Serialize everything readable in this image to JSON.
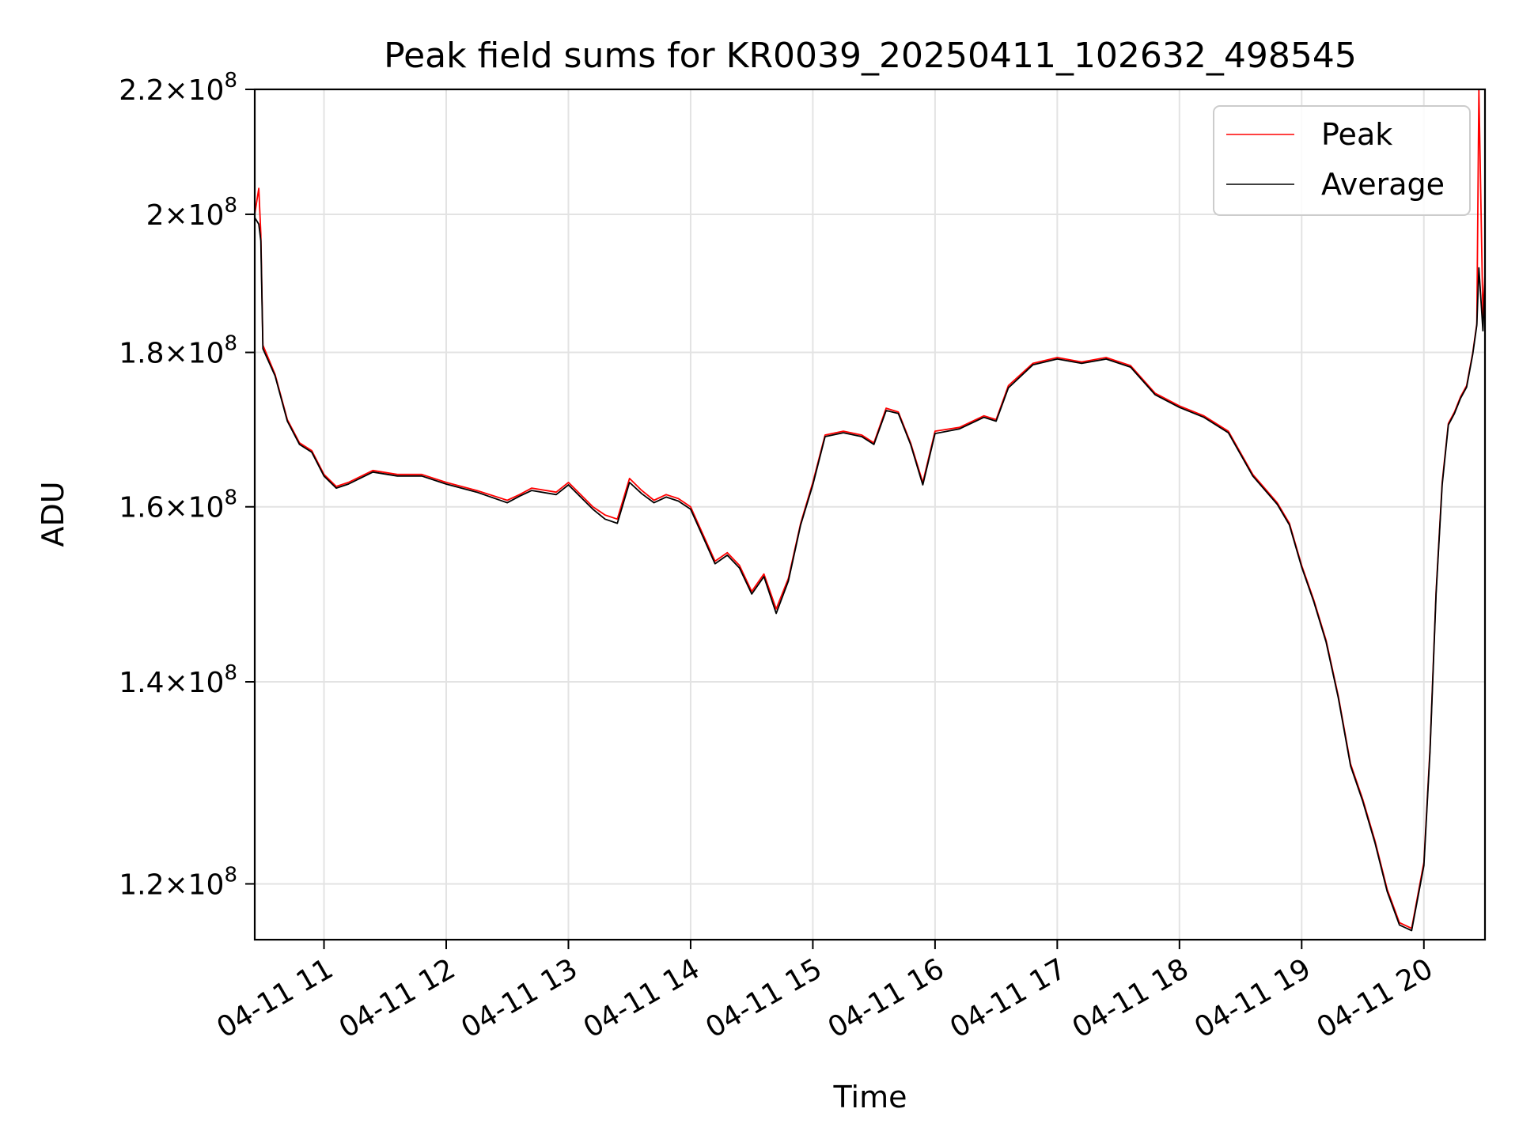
{
  "chart_data": {
    "type": "line",
    "title": "Peak field sums for KR0039_20250411_102632_498545",
    "xlabel": "Time",
    "ylabel": "ADU",
    "x_range": [
      "2025-04-11T10:26",
      "2025-04-11T20:30"
    ],
    "y_range": [
      115000000,
      220000000
    ],
    "y_scale": "log",
    "grid": true,
    "legend_position": "top-right",
    "x_tick_values": [
      "2025-04-11T11:00",
      "2025-04-11T12:00",
      "2025-04-11T13:00",
      "2025-04-11T14:00",
      "2025-04-11T15:00",
      "2025-04-11T16:00",
      "2025-04-11T17:00",
      "2025-04-11T18:00",
      "2025-04-11T19:00",
      "2025-04-11T20:00"
    ],
    "x_tick_labels": [
      "04-11 11",
      "04-11 12",
      "04-11 13",
      "04-11 14",
      "04-11 15",
      "04-11 16",
      "04-11 17",
      "04-11 18",
      "04-11 19",
      "04-11 20"
    ],
    "y_ticks": [
      {
        "value": 120000000,
        "mantissa": "1.2",
        "base": "10",
        "exponent": "8"
      },
      {
        "value": 140000000,
        "mantissa": "1.4",
        "base": "10",
        "exponent": "8"
      },
      {
        "value": 160000000,
        "mantissa": "1.6",
        "base": "10",
        "exponent": "8"
      },
      {
        "value": 180000000,
        "mantissa": "1.8",
        "base": "10",
        "exponent": "8"
      },
      {
        "value": 200000000,
        "mantissa": "2",
        "base": "10",
        "exponent": "8"
      },
      {
        "value": 220000000,
        "mantissa": "2.2",
        "base": "10",
        "exponent": "8"
      }
    ],
    "series": [
      {
        "name": "Peak",
        "color": "#ff0000",
        "x": [
          "2025-04-11T10:26",
          "2025-04-11T10:28",
          "2025-04-11T10:29",
          "2025-04-11T10:30",
          "2025-04-11T10:36",
          "2025-04-11T10:42",
          "2025-04-11T10:48",
          "2025-04-11T10:54",
          "2025-04-11T11:00",
          "2025-04-11T11:06",
          "2025-04-11T11:12",
          "2025-04-11T11:24",
          "2025-04-11T11:36",
          "2025-04-11T11:48",
          "2025-04-11T12:00",
          "2025-04-11T12:15",
          "2025-04-11T12:30",
          "2025-04-11T12:36",
          "2025-04-11T12:42",
          "2025-04-11T12:54",
          "2025-04-11T13:00",
          "2025-04-11T13:12",
          "2025-04-11T13:18",
          "2025-04-11T13:24",
          "2025-04-11T13:30",
          "2025-04-11T13:36",
          "2025-04-11T13:42",
          "2025-04-11T13:48",
          "2025-04-11T13:54",
          "2025-04-11T14:00",
          "2025-04-11T14:12",
          "2025-04-11T14:18",
          "2025-04-11T14:24",
          "2025-04-11T14:30",
          "2025-04-11T14:36",
          "2025-04-11T14:42",
          "2025-04-11T14:48",
          "2025-04-11T14:54",
          "2025-04-11T15:00",
          "2025-04-11T15:06",
          "2025-04-11T15:15",
          "2025-04-11T15:24",
          "2025-04-11T15:30",
          "2025-04-11T15:36",
          "2025-04-11T15:42",
          "2025-04-11T15:48",
          "2025-04-11T15:54",
          "2025-04-11T16:00",
          "2025-04-11T16:12",
          "2025-04-11T16:24",
          "2025-04-11T16:30",
          "2025-04-11T16:36",
          "2025-04-11T16:48",
          "2025-04-11T17:00",
          "2025-04-11T17:12",
          "2025-04-11T17:24",
          "2025-04-11T17:36",
          "2025-04-11T17:48",
          "2025-04-11T18:00",
          "2025-04-11T18:12",
          "2025-04-11T18:24",
          "2025-04-11T18:36",
          "2025-04-11T18:48",
          "2025-04-11T18:54",
          "2025-04-11T19:00",
          "2025-04-11T19:06",
          "2025-04-11T19:12",
          "2025-04-11T19:18",
          "2025-04-11T19:24",
          "2025-04-11T19:30",
          "2025-04-11T19:36",
          "2025-04-11T19:42",
          "2025-04-11T19:48",
          "2025-04-11T19:54",
          "2025-04-11T20:00",
          "2025-04-11T20:03",
          "2025-04-11T20:06",
          "2025-04-11T20:09",
          "2025-04-11T20:12",
          "2025-04-11T20:15",
          "2025-04-11T20:18",
          "2025-04-11T20:21",
          "2025-04-11T20:24",
          "2025-04-11T20:26",
          "2025-04-11T20:27",
          "2025-04-11T20:29",
          "2025-04-11T20:30"
        ],
        "y": [
          200000000,
          204000000,
          197000000,
          181000000,
          177000000,
          171000000,
          168000000,
          167000000,
          164000000,
          162500000,
          163000000,
          164500000,
          164000000,
          164000000,
          163000000,
          162000000,
          160800000,
          161500000,
          162300000,
          161800000,
          163000000,
          160000000,
          159000000,
          158500000,
          163500000,
          162000000,
          160800000,
          161500000,
          161000000,
          160000000,
          153500000,
          154500000,
          153000000,
          150000000,
          152000000,
          148000000,
          151500000,
          158000000,
          163000000,
          169000000,
          169500000,
          169000000,
          168000000,
          172500000,
          172000000,
          168000000,
          163000000,
          169500000,
          170000000,
          171500000,
          171000000,
          175500000,
          178500000,
          179300000,
          178700000,
          179300000,
          178200000,
          174500000,
          172800000,
          171500000,
          169500000,
          164000000,
          160500000,
          158000000,
          153000000,
          149000000,
          144500000,
          138500000,
          131500000,
          128000000,
          124000000,
          119500000,
          116500000,
          116000000,
          122000000,
          133000000,
          150000000,
          163000000,
          170500000,
          172000000,
          174000000,
          175500000,
          180000000,
          184000000,
          220000000,
          185000000,
          191000000
        ]
      },
      {
        "name": "Average",
        "color": "#000000",
        "x": [
          "2025-04-11T10:26",
          "2025-04-11T10:28",
          "2025-04-11T10:29",
          "2025-04-11T10:30",
          "2025-04-11T10:36",
          "2025-04-11T10:42",
          "2025-04-11T10:48",
          "2025-04-11T10:54",
          "2025-04-11T11:00",
          "2025-04-11T11:06",
          "2025-04-11T11:12",
          "2025-04-11T11:24",
          "2025-04-11T11:36",
          "2025-04-11T11:48",
          "2025-04-11T12:00",
          "2025-04-11T12:15",
          "2025-04-11T12:30",
          "2025-04-11T12:36",
          "2025-04-11T12:42",
          "2025-04-11T12:54",
          "2025-04-11T13:00",
          "2025-04-11T13:12",
          "2025-04-11T13:18",
          "2025-04-11T13:24",
          "2025-04-11T13:30",
          "2025-04-11T13:36",
          "2025-04-11T13:42",
          "2025-04-11T13:48",
          "2025-04-11T13:54",
          "2025-04-11T14:00",
          "2025-04-11T14:12",
          "2025-04-11T14:18",
          "2025-04-11T14:24",
          "2025-04-11T14:30",
          "2025-04-11T14:36",
          "2025-04-11T14:42",
          "2025-04-11T14:48",
          "2025-04-11T14:54",
          "2025-04-11T15:00",
          "2025-04-11T15:06",
          "2025-04-11T15:15",
          "2025-04-11T15:24",
          "2025-04-11T15:30",
          "2025-04-11T15:36",
          "2025-04-11T15:42",
          "2025-04-11T15:48",
          "2025-04-11T15:54",
          "2025-04-11T16:00",
          "2025-04-11T16:12",
          "2025-04-11T16:24",
          "2025-04-11T16:30",
          "2025-04-11T16:36",
          "2025-04-11T16:48",
          "2025-04-11T17:00",
          "2025-04-11T17:12",
          "2025-04-11T17:24",
          "2025-04-11T17:36",
          "2025-04-11T17:48",
          "2025-04-11T18:00",
          "2025-04-11T18:12",
          "2025-04-11T18:24",
          "2025-04-11T18:36",
          "2025-04-11T18:48",
          "2025-04-11T18:54",
          "2025-04-11T19:00",
          "2025-04-11T19:06",
          "2025-04-11T19:12",
          "2025-04-11T19:18",
          "2025-04-11T19:24",
          "2025-04-11T19:30",
          "2025-04-11T19:36",
          "2025-04-11T19:42",
          "2025-04-11T19:48",
          "2025-04-11T19:54",
          "2025-04-11T20:00",
          "2025-04-11T20:03",
          "2025-04-11T20:06",
          "2025-04-11T20:09",
          "2025-04-11T20:12",
          "2025-04-11T20:15",
          "2025-04-11T20:18",
          "2025-04-11T20:21",
          "2025-04-11T20:24",
          "2025-04-11T20:26",
          "2025-04-11T20:27",
          "2025-04-11T20:29",
          "2025-04-11T20:30"
        ],
        "y": [
          199500000,
          198500000,
          196000000,
          180500000,
          176800000,
          170800000,
          167800000,
          166800000,
          163800000,
          162300000,
          162800000,
          164300000,
          163800000,
          163800000,
          162800000,
          161800000,
          160500000,
          161300000,
          162000000,
          161500000,
          162700000,
          159700000,
          158500000,
          158000000,
          163000000,
          161600000,
          160500000,
          161200000,
          160700000,
          159700000,
          153200000,
          154200000,
          152700000,
          149700000,
          151700000,
          147500000,
          151200000,
          157800000,
          162700000,
          168800000,
          169300000,
          168800000,
          167800000,
          172200000,
          171800000,
          167800000,
          162700000,
          169200000,
          169800000,
          171300000,
          170800000,
          175200000,
          178300000,
          179100000,
          178500000,
          179100000,
          178000000,
          174300000,
          172600000,
          171300000,
          169300000,
          163800000,
          160300000,
          157800000,
          152800000,
          148800000,
          144300000,
          138300000,
          131300000,
          127800000,
          123800000,
          119300000,
          116300000,
          115800000,
          121700000,
          132700000,
          149700000,
          162700000,
          170300000,
          171800000,
          173800000,
          175300000,
          179800000,
          183800000,
          192000000,
          183000000,
          190000000
        ]
      }
    ]
  }
}
